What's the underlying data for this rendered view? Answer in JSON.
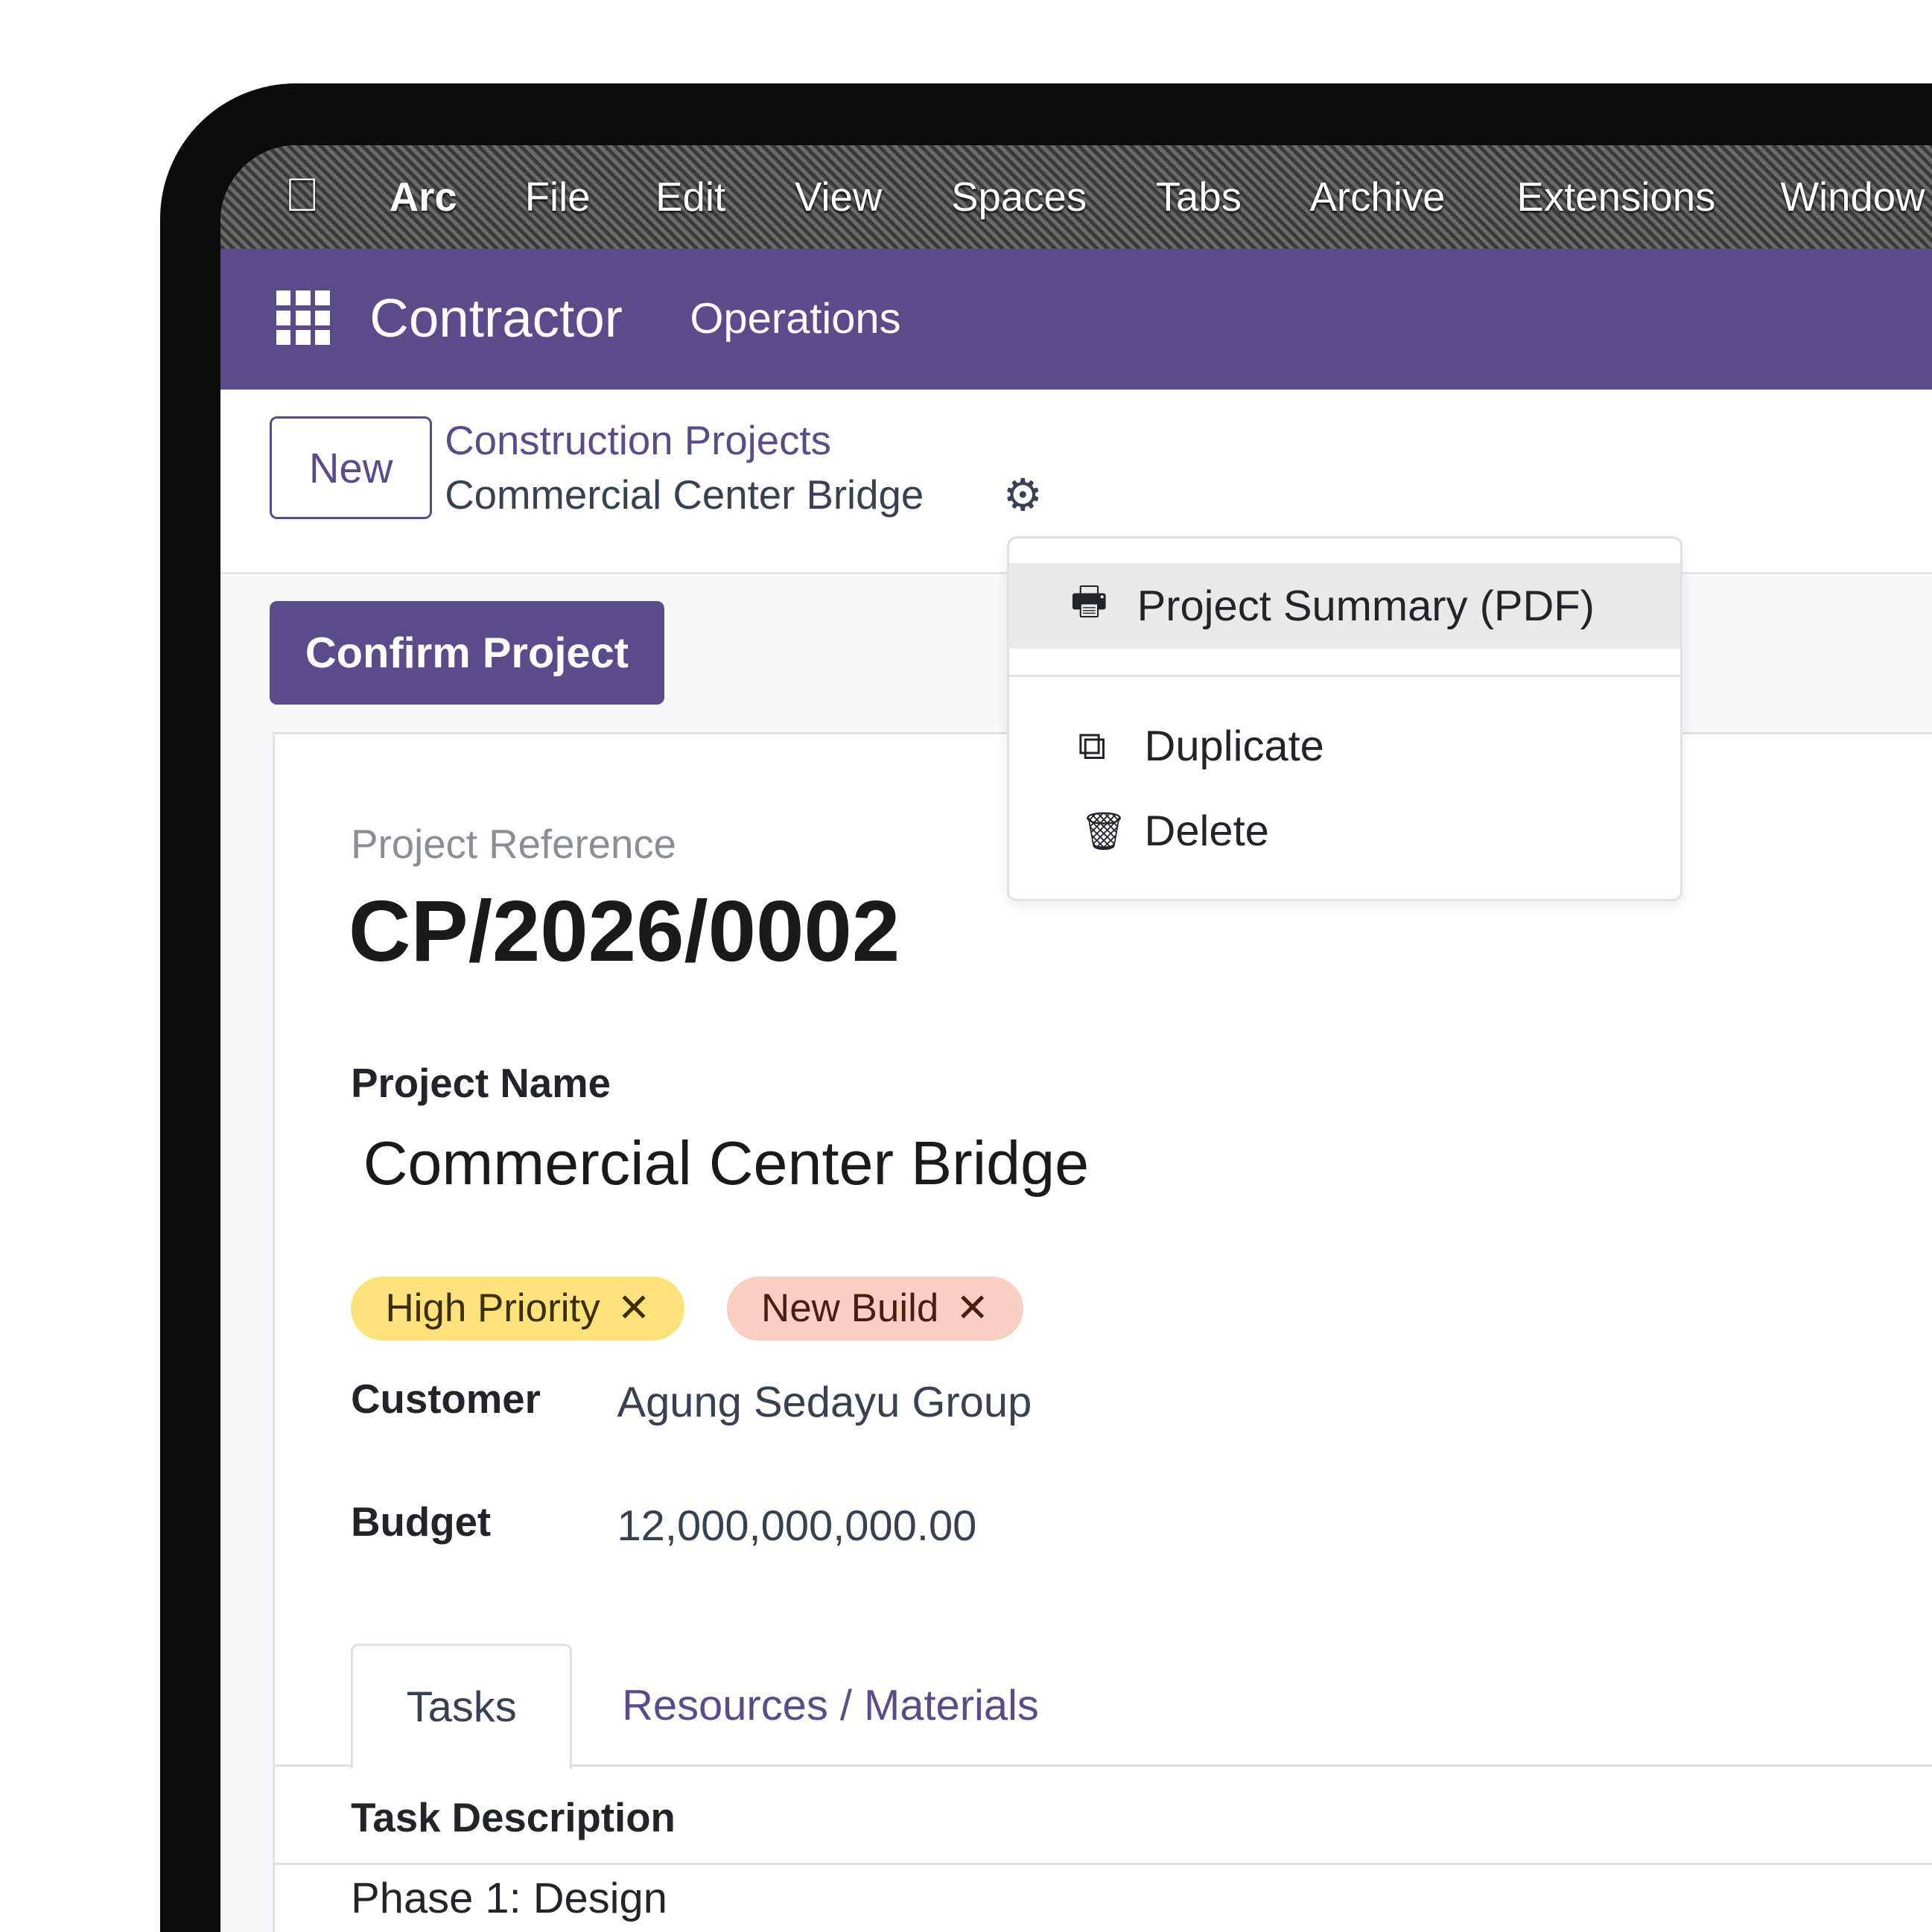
{
  "os_menu": {
    "apple": "apple-icon",
    "items": [
      "Arc",
      "File",
      "Edit",
      "View",
      "Spaces",
      "Tabs",
      "Archive",
      "Extensions",
      "Window"
    ]
  },
  "app": {
    "name": "Contractor",
    "nav": [
      "Operations"
    ],
    "accent": "#5c4b8a"
  },
  "control": {
    "new_label": "New",
    "breadcrumb_parent": "Construction Projects",
    "breadcrumb_current": "Commercial Center Bridge"
  },
  "actions": {
    "confirm_label": "Confirm Project"
  },
  "dropdown": {
    "items": [
      {
        "label": "Project Summary (PDF)",
        "icon": "printer-icon"
      },
      {
        "label": "Duplicate",
        "icon": "copy-icon"
      },
      {
        "label": "Delete",
        "icon": "trash-icon"
      }
    ]
  },
  "form": {
    "ref_label": "Project Reference",
    "ref_value": "CP/2026/0002",
    "name_label": "Project Name",
    "name_value": "Commercial Center Bridge",
    "tags": [
      {
        "label": "High Priority",
        "color": "#fde27c"
      },
      {
        "label": "New Build",
        "color": "#f8cfc0"
      }
    ],
    "customer_label": "Customer",
    "customer_value": "Agung Sedayu Group",
    "budget_label": "Budget",
    "budget_value": "12,000,000,000.00"
  },
  "tabs": [
    {
      "label": "Tasks",
      "active": true
    },
    {
      "label": "Resources / Materials",
      "active": false
    }
  ],
  "table": {
    "header": "Task Description",
    "rows": [
      "Phase 1: Design"
    ]
  }
}
